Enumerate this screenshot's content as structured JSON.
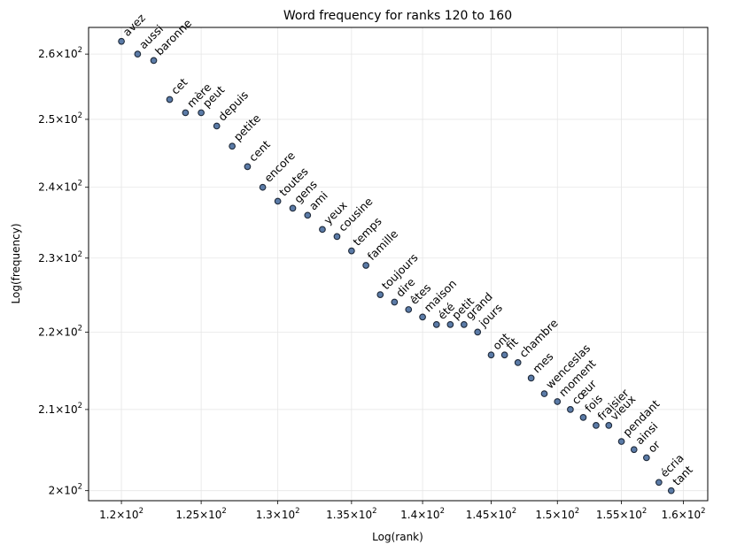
{
  "chart_data": {
    "type": "scatter",
    "title": "Word frequency for ranks 120 to 160",
    "xlabel": "Log(rank)",
    "ylabel": "Log(frequency)",
    "xscale": "log",
    "yscale": "log",
    "grid": true,
    "xlim": [
      118.0,
      162.0
    ],
    "ylim": [
      198.8,
      264.2
    ],
    "xticks": [
      {
        "value": 120,
        "mantissa": "1.2",
        "exp": "2"
      },
      {
        "value": 125,
        "mantissa": "1.25",
        "exp": "2"
      },
      {
        "value": 130,
        "mantissa": "1.3",
        "exp": "2"
      },
      {
        "value": 135,
        "mantissa": "1.35",
        "exp": "2"
      },
      {
        "value": 140,
        "mantissa": "1.4",
        "exp": "2"
      },
      {
        "value": 145,
        "mantissa": "1.45",
        "exp": "2"
      },
      {
        "value": 150,
        "mantissa": "1.5",
        "exp": "2"
      },
      {
        "value": 155,
        "mantissa": "1.55",
        "exp": "2"
      },
      {
        "value": 160,
        "mantissa": "1.6",
        "exp": "2"
      }
    ],
    "yticks": [
      {
        "value": 200,
        "mantissa": "2",
        "exp": "2"
      },
      {
        "value": 210,
        "mantissa": "2.1",
        "exp": "2"
      },
      {
        "value": 220,
        "mantissa": "2.2",
        "exp": "2"
      },
      {
        "value": 230,
        "mantissa": "2.3",
        "exp": "2"
      },
      {
        "value": 240,
        "mantissa": "2.4",
        "exp": "2"
      },
      {
        "value": 250,
        "mantissa": "2.5",
        "exp": "2"
      },
      {
        "value": 260,
        "mantissa": "2.6",
        "exp": "2"
      }
    ],
    "points": [
      {
        "rank": 120,
        "freq": 262,
        "word": "avez"
      },
      {
        "rank": 121,
        "freq": 260,
        "word": "aussi"
      },
      {
        "rank": 122,
        "freq": 259,
        "word": "baronne"
      },
      {
        "rank": 123,
        "freq": 253,
        "word": "cet"
      },
      {
        "rank": 124,
        "freq": 251,
        "word": "mère"
      },
      {
        "rank": 125,
        "freq": 251,
        "word": "peut"
      },
      {
        "rank": 126,
        "freq": 249,
        "word": "depuis"
      },
      {
        "rank": 127,
        "freq": 246,
        "word": "petite"
      },
      {
        "rank": 128,
        "freq": 243,
        "word": "cent"
      },
      {
        "rank": 129,
        "freq": 240,
        "word": "encore"
      },
      {
        "rank": 130,
        "freq": 238,
        "word": "toutes"
      },
      {
        "rank": 131,
        "freq": 237,
        "word": "gens"
      },
      {
        "rank": 132,
        "freq": 236,
        "word": "ami"
      },
      {
        "rank": 133,
        "freq": 234,
        "word": "yeux"
      },
      {
        "rank": 134,
        "freq": 233,
        "word": "cousine"
      },
      {
        "rank": 135,
        "freq": 231,
        "word": "temps"
      },
      {
        "rank": 136,
        "freq": 229,
        "word": "famille"
      },
      {
        "rank": 137,
        "freq": 225,
        "word": "toujours"
      },
      {
        "rank": 138,
        "freq": 224,
        "word": "dire"
      },
      {
        "rank": 139,
        "freq": 223,
        "word": "êtes"
      },
      {
        "rank": 140,
        "freq": 222,
        "word": "maison"
      },
      {
        "rank": 141,
        "freq": 221,
        "word": "été"
      },
      {
        "rank": 142,
        "freq": 221,
        "word": "petit"
      },
      {
        "rank": 143,
        "freq": 221,
        "word": "grand"
      },
      {
        "rank": 144,
        "freq": 220,
        "word": "jours"
      },
      {
        "rank": 145,
        "freq": 217,
        "word": "ont"
      },
      {
        "rank": 146,
        "freq": 217,
        "word": "fit"
      },
      {
        "rank": 147,
        "freq": 216,
        "word": "chambre"
      },
      {
        "rank": 148,
        "freq": 214,
        "word": "mes"
      },
      {
        "rank": 149,
        "freq": 212,
        "word": "wenceslas"
      },
      {
        "rank": 150,
        "freq": 211,
        "word": "moment"
      },
      {
        "rank": 151,
        "freq": 210,
        "word": "cœur"
      },
      {
        "rank": 152,
        "freq": 209,
        "word": "fois"
      },
      {
        "rank": 153,
        "freq": 208,
        "word": "fraisier"
      },
      {
        "rank": 154,
        "freq": 208,
        "word": "vieux"
      },
      {
        "rank": 155,
        "freq": 206,
        "word": "pendant"
      },
      {
        "rank": 156,
        "freq": 205,
        "word": "ainsi"
      },
      {
        "rank": 157,
        "freq": 204,
        "word": "or"
      },
      {
        "rank": 158,
        "freq": 201,
        "word": "écria"
      },
      {
        "rank": 159,
        "freq": 200,
        "word": "tant"
      }
    ],
    "colors": {
      "marker_fill": "#5b7ba7",
      "marker_edge": "#1f2a3a",
      "grid": "#e6e6e6",
      "axis": "#000000"
    }
  }
}
